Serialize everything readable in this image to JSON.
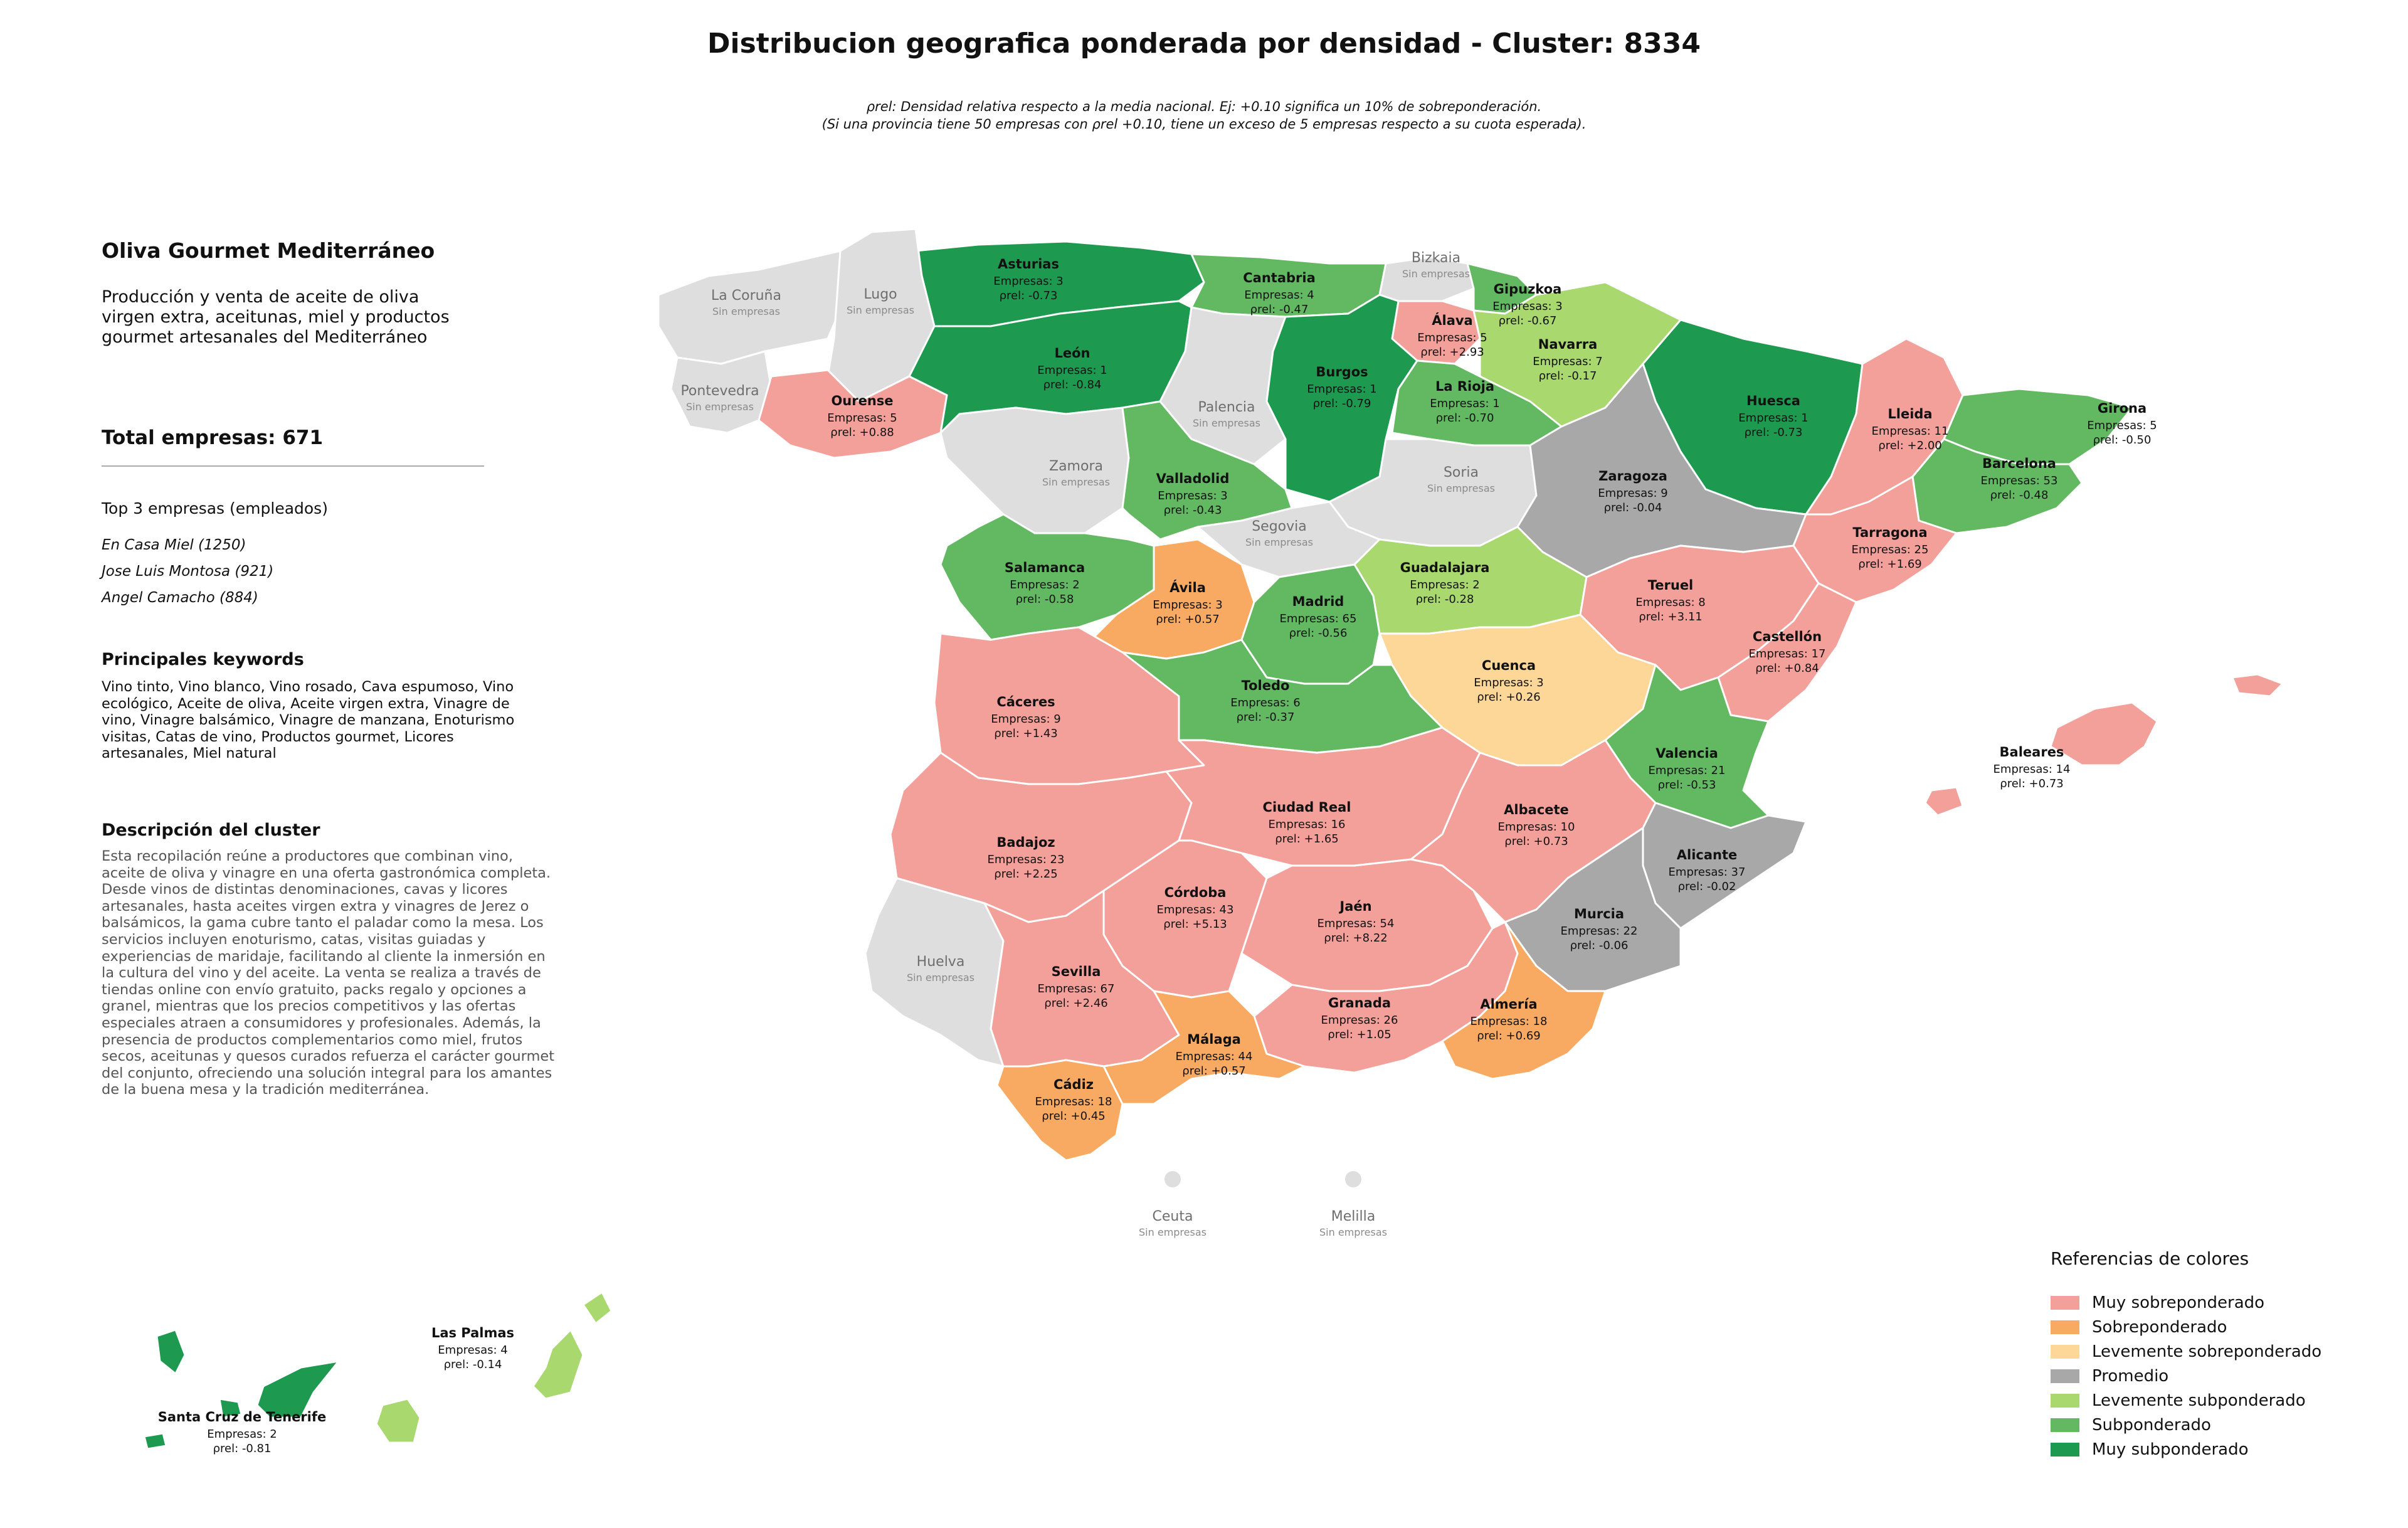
{
  "title": "Distribucion geografica ponderada por densidad - Cluster: 8334",
  "subtitle_1": "ρrel: Densidad relativa respecto a la media nacional. Ej: +0.10 significa un 10% de sobreponderación.",
  "subtitle_2": "(Si una provincia tiene 50 empresas con ρrel +0.10, tiene un exceso de 5 empresas respecto a su cuota esperada).",
  "panel": {
    "brand": "Oliva Gourmet Mediterráneo",
    "brand_description": "Producción y venta de aceite de oliva virgen extra, aceitunas, miel y productos gourmet artesanales del Mediterráneo",
    "total": "Total empresas: 671",
    "top3_title": "Top 3 empresas (empleados)",
    "top3": [
      "En Casa Miel (1250)",
      "Jose Luis Montosa (921)",
      "Angel Camacho (884)"
    ],
    "keywords_title": "Principales keywords",
    "keywords": "Vino tinto, Vino blanco, Vino rosado, Cava espumoso, Vino ecológico, Aceite de oliva, Aceite virgen extra, Vinagre de vino, Vinagre balsámico, Vinagre de manzana, Enoturismo visitas, Catas de vino, Productos gourmet, Licores artesanales, Miel natural",
    "description_title": "Descripción del cluster",
    "description": "Esta recopilación reúne a productores que combinan vino, aceite de oliva y vinagre en una oferta gastronómica completa. Desde vinos de distintas denominaciones, cavas y licores artesanales, hasta aceites virgen extra y vinagres de Jerez o balsámicos, la gama cubre tanto el paladar como la mesa. Los servicios incluyen enoturismo, catas, visitas guiadas y experiencias de maridaje, facilitando al cliente la inmersión en la cultura del vino y del aceite. La venta se realiza a través de tiendas online con envío gratuito, packs regalo y opciones a granel, mientras que los precios competitivos y las ofertas especiales atraen a consumidores y profesionales. Además, la presencia de productos complementarios como miel, frutos secos, aceitunas y quesos curados refuerza el carácter gourmet del conjunto, ofreciendo una solución integral para los amantes de la buena mesa y la tradición mediterránea."
  },
  "colors": {
    "muy_sobre": "#f4a09a",
    "sobre": "#f8aa62",
    "lev_sobre": "#fcd797",
    "promedio": "#a8a8a8",
    "lev_sub": "#a8d86e",
    "sub": "#62b962",
    "muy_sub": "#1d9a50",
    "sin": "#dedede"
  },
  "legend": {
    "title": "Referencias de colores",
    "items": [
      {
        "label": "Muy sobreponderado",
        "color": "#f4a09a"
      },
      {
        "label": "Sobreponderado",
        "color": "#f8aa62"
      },
      {
        "label": "Levemente sobreponderado",
        "color": "#fcd797"
      },
      {
        "label": "Promedio",
        "color": "#a8a8a8"
      },
      {
        "label": "Levemente subponderado",
        "color": "#a8d86e"
      },
      {
        "label": "Subponderado",
        "color": "#62b962"
      },
      {
        "label": "Muy subponderado",
        "color": "#1d9a50"
      }
    ]
  },
  "no_data_label": "Sin empresas",
  "provinces": [
    {
      "name": "Asturias",
      "empresas": "Empresas: 3",
      "rho": "ρrel: -0.73",
      "cls": "muy_sub"
    },
    {
      "name": "Cantabria",
      "empresas": "Empresas: 4",
      "rho": "ρrel: -0.47",
      "cls": "sub"
    },
    {
      "name": "Bizkaia",
      "cls": "sin"
    },
    {
      "name": "Gipuzkoa",
      "empresas": "Empresas: 3",
      "rho": "ρrel: -0.67",
      "cls": "sub"
    },
    {
      "name": "Álava",
      "empresas": "Empresas: 5",
      "rho": "ρrel: +2.93",
      "cls": "muy_sobre"
    },
    {
      "name": "Navarra",
      "empresas": "Empresas: 7",
      "rho": "ρrel: -0.17",
      "cls": "lev_sub"
    },
    {
      "name": "La Coruña",
      "cls": "sin"
    },
    {
      "name": "Lugo",
      "cls": "sin"
    },
    {
      "name": "Pontevedra",
      "cls": "sin"
    },
    {
      "name": "Ourense",
      "empresas": "Empresas: 5",
      "rho": "ρrel: +0.88",
      "cls": "muy_sobre"
    },
    {
      "name": "León",
      "empresas": "Empresas: 1",
      "rho": "ρrel: -0.84",
      "cls": "muy_sub"
    },
    {
      "name": "Palencia",
      "cls": "sin"
    },
    {
      "name": "Burgos",
      "empresas": "Empresas: 1",
      "rho": "ρrel: -0.79",
      "cls": "muy_sub"
    },
    {
      "name": "La Rioja",
      "empresas": "Empresas: 1",
      "rho": "ρrel: -0.70",
      "cls": "sub"
    },
    {
      "name": "Huesca",
      "empresas": "Empresas: 1",
      "rho": "ρrel: -0.73",
      "cls": "muy_sub"
    },
    {
      "name": "Lleida",
      "empresas": "Empresas: 11",
      "rho": "ρrel: +2.00",
      "cls": "muy_sobre"
    },
    {
      "name": "Girona",
      "empresas": "Empresas: 5",
      "rho": "ρrel: -0.50",
      "cls": "sub"
    },
    {
      "name": "Barcelona",
      "empresas": "Empresas: 53",
      "rho": "ρrel: -0.48",
      "cls": "sub"
    },
    {
      "name": "Zamora",
      "cls": "sin"
    },
    {
      "name": "Valladolid",
      "empresas": "Empresas: 3",
      "rho": "ρrel: -0.43",
      "cls": "sub"
    },
    {
      "name": "Soria",
      "cls": "sin"
    },
    {
      "name": "Zaragoza",
      "empresas": "Empresas: 9",
      "rho": "ρrel: -0.04",
      "cls": "promedio"
    },
    {
      "name": "Tarragona",
      "empresas": "Empresas: 25",
      "rho": "ρrel: +1.69",
      "cls": "muy_sobre"
    },
    {
      "name": "Salamanca",
      "empresas": "Empresas: 2",
      "rho": "ρrel: -0.58",
      "cls": "sub"
    },
    {
      "name": "Segovia",
      "cls": "sin"
    },
    {
      "name": "Ávila",
      "empresas": "Empresas: 3",
      "rho": "ρrel: +0.57",
      "cls": "sobre"
    },
    {
      "name": "Madrid",
      "empresas": "Empresas: 65",
      "rho": "ρrel: -0.56",
      "cls": "sub"
    },
    {
      "name": "Guadalajara",
      "empresas": "Empresas: 2",
      "rho": "ρrel: -0.28",
      "cls": "lev_sub"
    },
    {
      "name": "Teruel",
      "empresas": "Empresas: 8",
      "rho": "ρrel: +3.11",
      "cls": "muy_sobre"
    },
    {
      "name": "Castellón",
      "empresas": "Empresas: 17",
      "rho": "ρrel: +0.84",
      "cls": "muy_sobre"
    },
    {
      "name": "Cuenca",
      "empresas": "Empresas: 3",
      "rho": "ρrel: +0.26",
      "cls": "lev_sobre"
    },
    {
      "name": "Cáceres",
      "empresas": "Empresas: 9",
      "rho": "ρrel: +1.43",
      "cls": "muy_sobre"
    },
    {
      "name": "Toledo",
      "empresas": "Empresas: 6",
      "rho": "ρrel: -0.37",
      "cls": "sub"
    },
    {
      "name": "Valencia",
      "empresas": "Empresas: 21",
      "rho": "ρrel: -0.53",
      "cls": "sub"
    },
    {
      "name": "Baleares",
      "empresas": "Empresas: 14",
      "rho": "ρrel: +0.73",
      "cls": "muy_sobre"
    },
    {
      "name": "Badajoz",
      "empresas": "Empresas: 23",
      "rho": "ρrel: +2.25",
      "cls": "muy_sobre"
    },
    {
      "name": "Ciudad Real",
      "empresas": "Empresas: 16",
      "rho": "ρrel: +1.65",
      "cls": "muy_sobre"
    },
    {
      "name": "Albacete",
      "empresas": "Empresas: 10",
      "rho": "ρrel: +0.73",
      "cls": "muy_sobre"
    },
    {
      "name": "Alicante",
      "empresas": "Empresas: 37",
      "rho": "ρrel: -0.02",
      "cls": "promedio"
    },
    {
      "name": "Córdoba",
      "empresas": "Empresas: 43",
      "rho": "ρrel: +5.13",
      "cls": "muy_sobre"
    },
    {
      "name": "Jaén",
      "empresas": "Empresas: 54",
      "rho": "ρrel: +8.22",
      "cls": "muy_sobre"
    },
    {
      "name": "Murcia",
      "empresas": "Empresas: 22",
      "rho": "ρrel: -0.06",
      "cls": "promedio"
    },
    {
      "name": "Huelva",
      "cls": "sin"
    },
    {
      "name": "Sevilla",
      "empresas": "Empresas: 67",
      "rho": "ρrel: +2.46",
      "cls": "muy_sobre"
    },
    {
      "name": "Granada",
      "empresas": "Empresas: 26",
      "rho": "ρrel: +1.05",
      "cls": "muy_sobre"
    },
    {
      "name": "Almería",
      "empresas": "Empresas: 18",
      "rho": "ρrel: +0.69",
      "cls": "sobre"
    },
    {
      "name": "Málaga",
      "empresas": "Empresas: 44",
      "rho": "ρrel: +0.57",
      "cls": "sobre"
    },
    {
      "name": "Cádiz",
      "empresas": "Empresas: 18",
      "rho": "ρrel: +0.45",
      "cls": "sobre"
    },
    {
      "name": "Ceuta",
      "cls": "sin"
    },
    {
      "name": "Melilla",
      "cls": "sin"
    },
    {
      "name": "Las Palmas",
      "empresas": "Empresas: 4",
      "rho": "ρrel: -0.14",
      "cls": "lev_sub"
    },
    {
      "name": "Santa Cruz de Tenerife",
      "empresas": "Empresas: 2",
      "rho": "ρrel: -0.81",
      "cls": "muy_sub"
    }
  ]
}
